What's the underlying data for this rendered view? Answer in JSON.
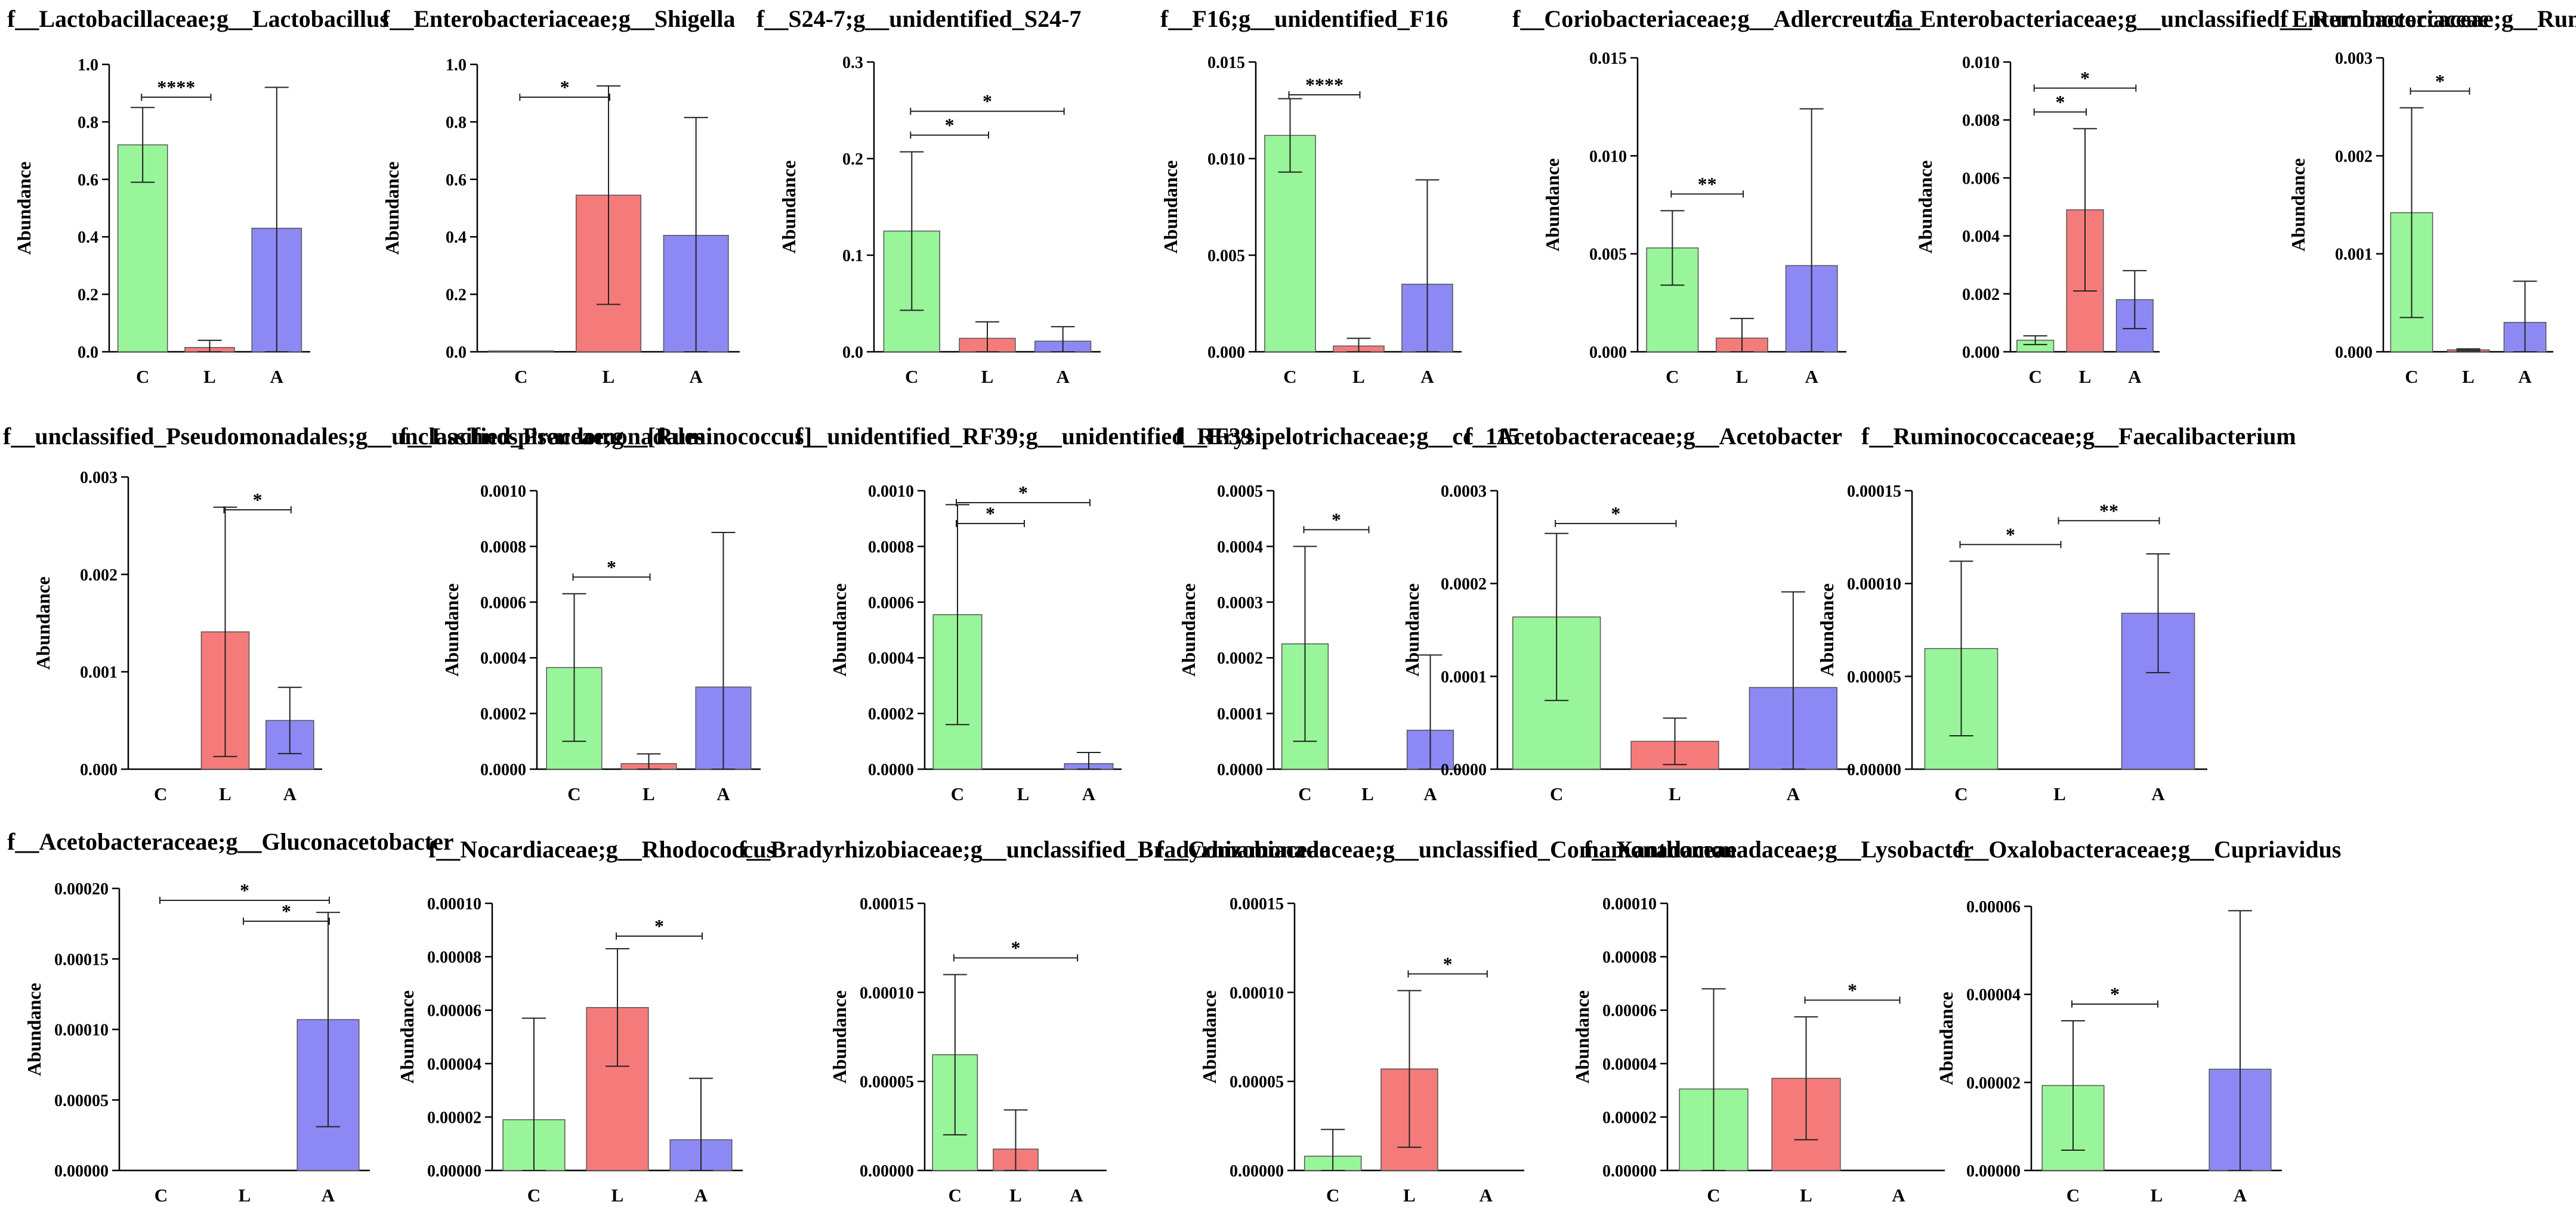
{
  "chart_data": [
    {
      "type": "bar",
      "title": "f__Lactobacillaceae;g__Lactobacillus",
      "ylabel": "Abundance",
      "categories": [
        "C",
        "L",
        "A"
      ],
      "values": [
        0.72,
        0.015,
        0.43
      ],
      "errors": [
        0.13,
        0.025,
        0.49
      ],
      "ylim": [
        0,
        1.0
      ],
      "yticks": [
        "0.0",
        "0.2",
        "0.4",
        "0.6",
        "0.8",
        "1.0"
      ],
      "significance": [
        {
          "from": 0,
          "to": 1,
          "label": "****"
        }
      ]
    },
    {
      "type": "bar",
      "title": "f__Enterobacteriaceae;g__Shigella",
      "ylabel": "Abundance",
      "categories": [
        "C",
        "L",
        "A"
      ],
      "values": [
        0.003,
        0.545,
        0.405
      ],
      "errors": [
        0,
        0.38,
        0.41
      ],
      "ylim": [
        0,
        1.0
      ],
      "yticks": [
        "0.0",
        "0.2",
        "0.4",
        "0.6",
        "0.8",
        "1.0"
      ],
      "significance": [
        {
          "from": 0,
          "to": 1,
          "label": "*"
        }
      ]
    },
    {
      "type": "bar",
      "title": "f__S24-7;g__unidentified_S24-7",
      "ylabel": "Abundance",
      "categories": [
        "C",
        "L",
        "A"
      ],
      "values": [
        0.125,
        0.014,
        0.011
      ],
      "errors": [
        0.082,
        0.017,
        0.015
      ],
      "ylim": [
        0,
        0.3
      ],
      "yticks": [
        "0.0",
        "0.1",
        "0.2",
        "0.3"
      ],
      "significance": [
        {
          "from": 0,
          "to": 1,
          "label": "*"
        },
        {
          "from": 0,
          "to": 2,
          "label": "*"
        }
      ]
    },
    {
      "type": "bar",
      "title": "f__F16;g__unidentified_F16",
      "ylabel": "Abundance",
      "categories": [
        "C",
        "L",
        "A"
      ],
      "values": [
        0.0112,
        0.0003,
        0.0035
      ],
      "errors": [
        0.0019,
        0.0004,
        0.0054
      ],
      "ylim": [
        0,
        0.015
      ],
      "yticks": [
        "0.000",
        "0.005",
        "0.010",
        "0.015"
      ],
      "significance": [
        {
          "from": 0,
          "to": 1,
          "label": "****"
        }
      ]
    },
    {
      "type": "bar",
      "title": "f__Coriobacteriaceae;g__Adlercreutzia",
      "ylabel": "Abundance",
      "categories": [
        "C",
        "L",
        "A"
      ],
      "values": [
        0.0053,
        0.0007,
        0.0044
      ],
      "errors": [
        0.0019,
        0.001,
        0.008
      ],
      "ylim": [
        0,
        0.015
      ],
      "yticks": [
        "0.000",
        "0.005",
        "0.010",
        "0.015"
      ],
      "significance": [
        {
          "from": 0,
          "to": 1,
          "label": "**"
        }
      ]
    },
    {
      "type": "bar",
      "title": "f__Enterobacteriaceae;g__unclassified_Enterobacteriaceae",
      "ylabel": "Abundance",
      "categories": [
        "C",
        "L",
        "A"
      ],
      "values": [
        0.0004,
        0.0049,
        0.0018
      ],
      "errors": [
        0.00015,
        0.0028,
        0.001
      ],
      "ylim": [
        0,
        0.01
      ],
      "yticks": [
        "0.000",
        "0.002",
        "0.004",
        "0.006",
        "0.008",
        "0.010"
      ],
      "significance": [
        {
          "from": 0,
          "to": 1,
          "label": "*"
        },
        {
          "from": 0,
          "to": 2,
          "label": "*"
        }
      ]
    },
    {
      "type": "bar",
      "title": "f__Ruminococcaceae;g__Ruminococcus",
      "ylabel": "Abundance",
      "categories": [
        "C",
        "L",
        "A"
      ],
      "values": [
        0.00142,
        2e-05,
        0.0003
      ],
      "errors": [
        0.00107,
        1e-05,
        0.00042
      ],
      "ylim": [
        0,
        0.003
      ],
      "yticks": [
        "0.000",
        "0.001",
        "0.002",
        "0.003"
      ],
      "significance": [
        {
          "from": 0,
          "to": 1,
          "label": "*"
        }
      ]
    },
    {
      "type": "bar",
      "title": "f__unclassified_Pseudomonadales;g__unclassified_Pseudomonadales",
      "ylabel": "Abundance",
      "categories": [
        "C",
        "L",
        "A"
      ],
      "values": [
        0,
        0.00141,
        0.0005
      ],
      "errors": [
        0,
        0.00128,
        0.00034
      ],
      "ylim": [
        0,
        0.003
      ],
      "yticks": [
        "0.000",
        "0.001",
        "0.002",
        "0.003"
      ],
      "significance": [
        {
          "from": 1,
          "to": 2,
          "label": "*"
        }
      ]
    },
    {
      "type": "bar",
      "title": "f__Lachnospiraceae;g__[Ruminococcus]",
      "ylabel": "Abundance",
      "categories": [
        "C",
        "L",
        "A"
      ],
      "values": [
        0.000365,
        2e-05,
        0.000295
      ],
      "errors": [
        0.000265,
        3.5e-05,
        0.000555
      ],
      "ylim": [
        0,
        0.001
      ],
      "yticks": [
        "0.0000",
        "0.0002",
        "0.0004",
        "0.0006",
        "0.0008",
        "0.0010"
      ],
      "significance": [
        {
          "from": 0,
          "to": 1,
          "label": "*"
        }
      ]
    },
    {
      "type": "bar",
      "title": "f__unidentified_RF39;g__unidentified_RF39",
      "ylabel": "Abundance",
      "categories": [
        "C",
        "L",
        "A"
      ],
      "values": [
        0.000555,
        0,
        2e-05
      ],
      "errors": [
        0.000395,
        0,
        4e-05
      ],
      "ylim": [
        0,
        0.001
      ],
      "yticks": [
        "0.0000",
        "0.0002",
        "0.0004",
        "0.0006",
        "0.0008",
        "0.0010"
      ],
      "significance": [
        {
          "from": 0,
          "to": 1,
          "label": "*"
        },
        {
          "from": 0,
          "to": 2,
          "label": "*"
        }
      ]
    },
    {
      "type": "bar",
      "title": "f__Erysipelotrichaceae;g__cc_115",
      "ylabel": "Abundance",
      "categories": [
        "C",
        "L",
        "A"
      ],
      "values": [
        0.000225,
        0,
        7e-05
      ],
      "errors": [
        0.000175,
        0,
        0.000135
      ],
      "ylim": [
        0,
        0.0005
      ],
      "yticks": [
        "0.0000",
        "0.0001",
        "0.0002",
        "0.0003",
        "0.0004",
        "0.0005"
      ],
      "significance": [
        {
          "from": 0,
          "to": 1,
          "label": "*"
        }
      ]
    },
    {
      "type": "bar",
      "title": "f__Acetobacteraceae;g__Acetobacter",
      "ylabel": "Abundance",
      "categories": [
        "C",
        "L",
        "A"
      ],
      "values": [
        0.000164,
        3e-05,
        8.8e-05
      ],
      "errors": [
        9e-05,
        2.5e-05,
        0.000103
      ],
      "ylim": [
        0,
        0.0003
      ],
      "yticks": [
        "0.0000",
        "0.0001",
        "0.0002",
        "0.0003"
      ],
      "significance": [
        {
          "from": 0,
          "to": 1,
          "label": "*"
        }
      ]
    },
    {
      "type": "bar",
      "title": "f__Ruminococcaceae;g__Faecalibacterium",
      "ylabel": "Abundance",
      "categories": [
        "C",
        "L",
        "A"
      ],
      "values": [
        6.5e-05,
        0,
        8.4e-05
      ],
      "errors": [
        4.7e-05,
        0,
        3.2e-05
      ],
      "ylim": [
        0,
        0.00015
      ],
      "yticks": [
        "0.00000",
        "0.00005",
        "0.00010",
        "0.00015"
      ],
      "significance": [
        {
          "from": 0,
          "to": 1,
          "label": "*"
        },
        {
          "from": 1,
          "to": 2,
          "label": "**"
        }
      ]
    },
    {
      "type": "bar",
      "title": "f__Acetobacteraceae;g__Gluconacetobacter",
      "ylabel": "Abundance",
      "categories": [
        "C",
        "L",
        "A"
      ],
      "values": [
        0,
        0,
        0.000107
      ],
      "errors": [
        0,
        0,
        7.6e-05
      ],
      "ylim": [
        0,
        0.0002
      ],
      "yticks": [
        "0.00000",
        "0.00005",
        "0.00010",
        "0.00015",
        "0.00020"
      ],
      "significance": [
        {
          "from": 0,
          "to": 2,
          "label": "*"
        },
        {
          "from": 1,
          "to": 2,
          "label": "*"
        }
      ]
    },
    {
      "type": "bar",
      "title": "f__Nocardiaceae;g__Rhodococcus",
      "ylabel": "Abundance",
      "categories": [
        "C",
        "L",
        "A"
      ],
      "values": [
        1.9e-05,
        6.1e-05,
        1.15e-05
      ],
      "errors": [
        3.8e-05,
        2.2e-05,
        2.3e-05
      ],
      "ylim": [
        0,
        0.0001
      ],
      "yticks": [
        "0.00000",
        "0.00002",
        "0.00004",
        "0.00006",
        "0.00008",
        "0.00010"
      ],
      "significance": [
        {
          "from": 1,
          "to": 2,
          "label": "*"
        }
      ]
    },
    {
      "type": "bar",
      "title": "f__Bradyrhizobiaceae;g__unclassified_Bradyrhizobiaceae",
      "ylabel": "Abundance",
      "categories": [
        "C",
        "L",
        "A"
      ],
      "values": [
        6.5e-05,
        1.2e-05,
        0
      ],
      "errors": [
        4.5e-05,
        2.2e-05,
        0
      ],
      "ylim": [
        0,
        0.00015
      ],
      "yticks": [
        "0.00000",
        "0.00005",
        "0.00010",
        "0.00015"
      ],
      "significance": [
        {
          "from": 0,
          "to": 2,
          "label": "*"
        }
      ]
    },
    {
      "type": "bar",
      "title": "f__Comamonadaceae;g__unclassified_Comamonadaceae",
      "ylabel": "Abundance",
      "categories": [
        "C",
        "L",
        "A"
      ],
      "values": [
        8e-06,
        5.7e-05,
        0
      ],
      "errors": [
        1.5e-05,
        4.4e-05,
        0
      ],
      "ylim": [
        0,
        0.00015
      ],
      "yticks": [
        "0.00000",
        "0.00005",
        "0.00010",
        "0.00015"
      ],
      "significance": [
        {
          "from": 1,
          "to": 2,
          "label": "*"
        }
      ]
    },
    {
      "type": "bar",
      "title": "f__Xanthomonadaceae;g__Lysobacter",
      "ylabel": "Abundance",
      "categories": [
        "C",
        "L",
        "A"
      ],
      "values": [
        3.05e-05,
        3.45e-05,
        0
      ],
      "errors": [
        3.75e-05,
        2.3e-05,
        0
      ],
      "ylim": [
        0,
        0.0001
      ],
      "yticks": [
        "0.00000",
        "0.00002",
        "0.00004",
        "0.00006",
        "0.00008",
        "0.00010"
      ],
      "significance": [
        {
          "from": 1,
          "to": 2,
          "label": "*"
        }
      ]
    },
    {
      "type": "bar",
      "title": "f__Oxalobacteraceae;g__Cupriavidus",
      "ylabel": "Abundance",
      "categories": [
        "C",
        "L",
        "A"
      ],
      "values": [
        1.93e-05,
        0,
        2.3e-05
      ],
      "errors": [
        1.47e-05,
        0,
        3.6e-05
      ],
      "ylim": [
        0,
        6e-05
      ],
      "yticks": [
        "0.00000",
        "0.00002",
        "0.00004",
        "0.00006"
      ],
      "significance": [
        {
          "from": 0,
          "to": 1,
          "label": "*"
        }
      ]
    }
  ],
  "colors": {
    "C": "#99f59a",
    "L": "#f57b7b",
    "A": "#8c89f5",
    "border": "#555555",
    "text": "#000000"
  }
}
